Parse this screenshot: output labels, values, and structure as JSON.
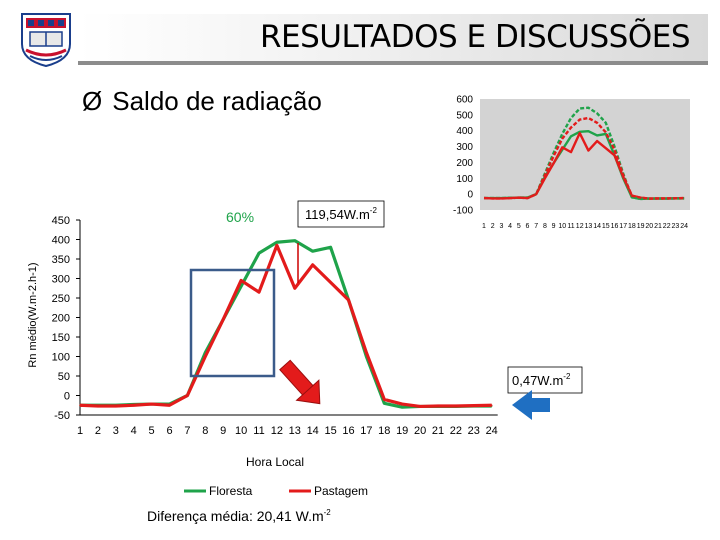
{
  "header": {
    "title": "RESULTADOS E DISCUSSÕES"
  },
  "bullet": {
    "arrow": "Ø",
    "text": "Saldo de radiação"
  },
  "annotations": {
    "percent": "60%",
    "peak_diff": "119,54W.m",
    "peak_diff_sup": "-2",
    "night_diff": "0,47W.m",
    "night_diff_sup": "-2",
    "mean_diff": "Diferença média: 20,41 W.m",
    "mean_diff_sup": "-2"
  },
  "colors": {
    "floresta": "#1fa34a",
    "pastagem": "#e31b1b",
    "highlight_box": "#3b5b8a",
    "blue_arrow": "#1f6fc2"
  },
  "chart_data": [
    {
      "type": "line",
      "title": "",
      "xlabel": "Hora Local",
      "ylabel": "Rn médio(W.m-2.h-1)",
      "ylim": [
        -50,
        450
      ],
      "yticks": [
        -50,
        0,
        50,
        100,
        150,
        200,
        250,
        300,
        350,
        400,
        450
      ],
      "categories": [
        "1",
        "2",
        "3",
        "4",
        "5",
        "6",
        "7",
        "8",
        "9",
        "10",
        "11",
        "12",
        "13",
        "14",
        "15",
        "16",
        "17",
        "18",
        "19",
        "20",
        "21",
        "22",
        "23",
        "24"
      ],
      "series": [
        {
          "name": "Floresta",
          "values": [
            -25,
            -25,
            -25,
            -23,
            -22,
            -22,
            0,
            110,
            195,
            280,
            365,
            393,
            397,
            370,
            380,
            245,
            100,
            -20,
            -30,
            -28,
            -28,
            -28,
            -27,
            -27
          ]
        },
        {
          "name": "Pastagem",
          "values": [
            -25,
            -27,
            -27,
            -25,
            -22,
            -25,
            0,
            100,
            195,
            295,
            265,
            385,
            275,
            335,
            290,
            245,
            110,
            -10,
            -22,
            -28,
            -27,
            -27,
            -26,
            -25
          ]
        }
      ],
      "legend": "bottom"
    },
    {
      "type": "line",
      "title": "",
      "ylim": [
        -100,
        600
      ],
      "yticks": [
        -100,
        0,
        100,
        200,
        300,
        400,
        500,
        600
      ],
      "categories": [
        "1",
        "2",
        "3",
        "4",
        "5",
        "6",
        "7",
        "8",
        "9",
        "10",
        "11",
        "12",
        "13",
        "14",
        "15",
        "16",
        "17",
        "18",
        "19",
        "20",
        "21",
        "22",
        "23",
        "24"
      ],
      "series": [
        {
          "values": [
            -25,
            -25,
            -25,
            -23,
            -22,
            -22,
            0,
            110,
            195,
            280,
            365,
            393,
            397,
            370,
            380,
            245,
            100,
            -20,
            -30,
            -28,
            -28,
            -28,
            -27,
            -27
          ]
        },
        {
          "values": [
            -25,
            -27,
            -27,
            -25,
            -22,
            -25,
            0,
            100,
            195,
            295,
            265,
            385,
            275,
            335,
            290,
            245,
            110,
            -10,
            -22,
            -28,
            -27,
            -27,
            -26,
            -25
          ]
        },
        {
          "values": [
            -25,
            -25,
            -25,
            -23,
            -22,
            -22,
            0,
            130,
            260,
            380,
            480,
            540,
            545,
            510,
            450,
            300,
            130,
            -20,
            -30,
            -28,
            -28,
            -28,
            -27,
            -27
          ]
        },
        {
          "values": [
            -25,
            -27,
            -27,
            -25,
            -22,
            -25,
            0,
            120,
            240,
            350,
            420,
            470,
            480,
            450,
            390,
            280,
            120,
            -10,
            -22,
            -28,
            -27,
            -27,
            -26,
            -25
          ]
        }
      ],
      "grid": false
    }
  ]
}
